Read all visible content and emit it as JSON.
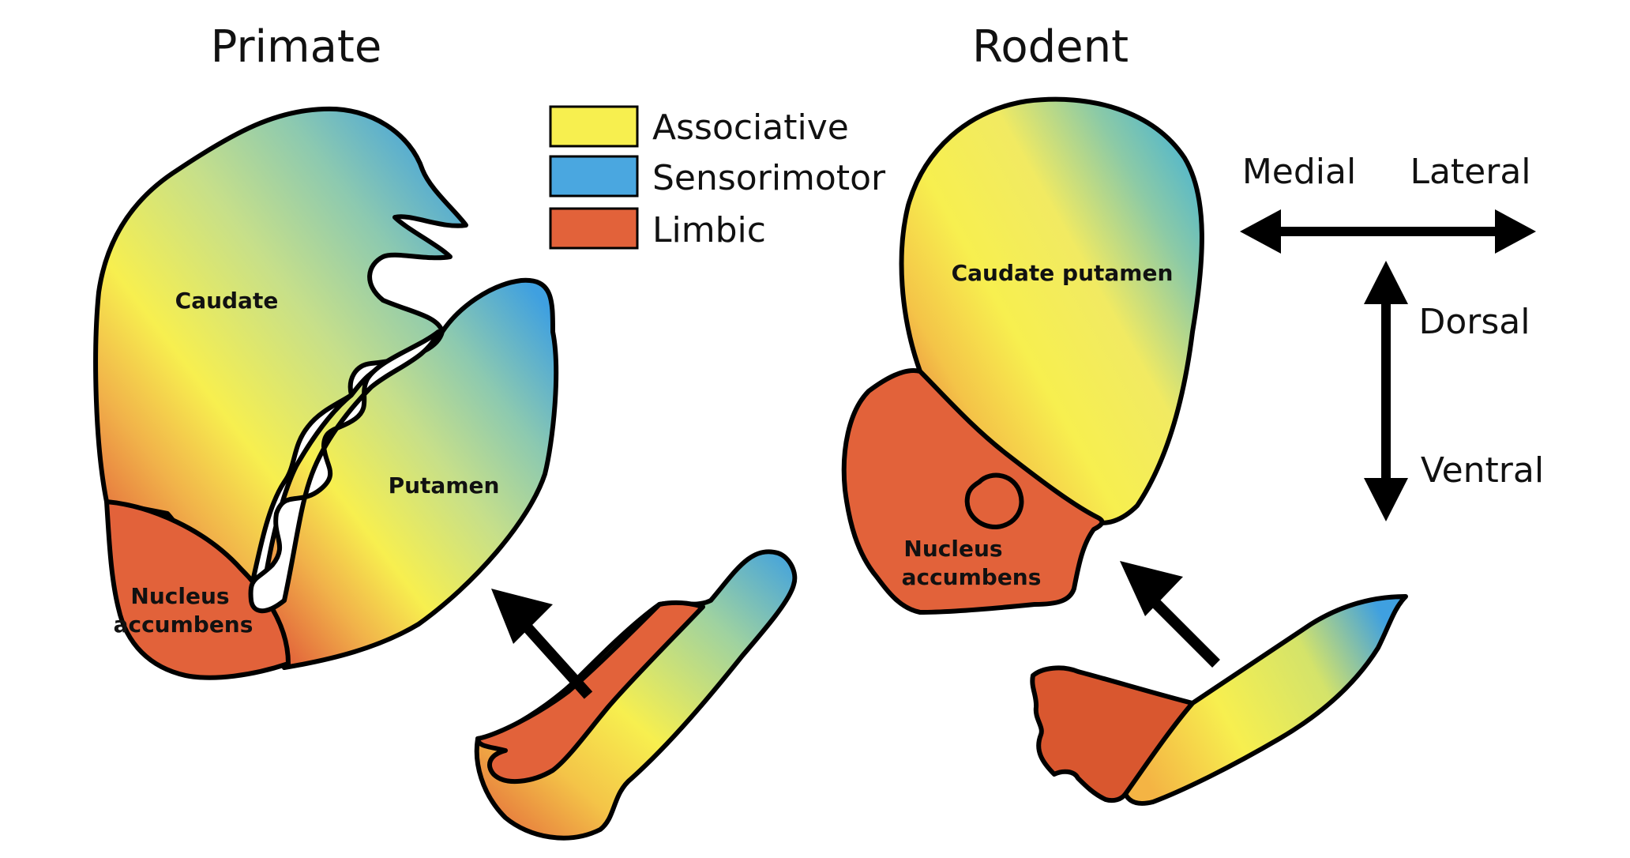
{
  "titles": {
    "primate": "Primate",
    "rodent": "Rodent"
  },
  "legend": [
    {
      "label": "Associative",
      "color": "#f7ef4f"
    },
    {
      "label": "Sensorimotor",
      "color": "#4aa7e0"
    },
    {
      "label": "Limbic",
      "color": "#e2623a"
    }
  ],
  "primate_labels": {
    "caudate": "Caudate",
    "putamen": "Putamen",
    "nacc_line1": "Nucleus",
    "nacc_line2": "accumbens"
  },
  "rodent_labels": {
    "caudate_putamen": "Caudate putamen",
    "nacc_line1": "Nucleus",
    "nacc_line2": "accumbens"
  },
  "axes": {
    "medial": "Medial",
    "lateral": "Lateral",
    "dorsal": "Dorsal",
    "ventral": "Ventral"
  },
  "colors": {
    "associative": "#f7ef4f",
    "sensorimotor": "#4aa7e0",
    "limbic": "#e2623a",
    "outline": "#000000"
  }
}
